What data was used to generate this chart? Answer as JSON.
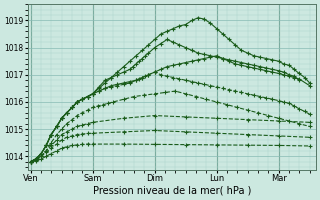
{
  "bg_color": "#cce8e0",
  "plot_bg": "#cce8e0",
  "grid_color_major": "#88bbb4",
  "grid_color_minor": "#aad4cc",
  "line_color": "#1a5c1a",
  "xlabel": "Pression niveau de la mer( hPa )",
  "ylim": [
    1013.5,
    1019.6
  ],
  "yticks": [
    1014,
    1015,
    1016,
    1017,
    1018,
    1019
  ],
  "day_labels": [
    "Ven",
    "Sam",
    "Dim",
    "Lun",
    "Mar"
  ],
  "day_x": [
    0,
    1,
    2,
    3,
    4
  ],
  "total_hours": 120,
  "vline_color": "#336644",
  "series": [
    {
      "x": [
        0.0,
        0.08,
        0.17,
        0.25,
        0.33,
        0.42,
        0.5,
        0.58,
        0.67,
        0.75,
        0.83,
        0.92,
        1.0,
        1.1,
        1.2,
        1.3,
        1.4,
        1.5,
        1.6,
        1.7,
        1.8,
        1.9,
        2.0,
        2.1,
        2.2,
        2.3,
        2.4,
        2.5,
        2.6,
        2.7,
        2.8,
        2.9,
        3.0,
        3.1,
        3.2,
        3.3,
        3.4,
        3.5,
        3.6,
        3.7,
        3.8,
        3.9,
        4.0,
        4.08,
        4.17,
        4.25,
        4.33,
        4.42,
        4.5
      ],
      "y": [
        1013.8,
        1013.9,
        1014.1,
        1014.4,
        1014.8,
        1015.1,
        1015.4,
        1015.6,
        1015.8,
        1016.0,
        1016.1,
        1016.2,
        1016.3,
        1016.5,
        1016.7,
        1016.9,
        1017.1,
        1017.3,
        1017.5,
        1017.7,
        1017.9,
        1018.1,
        1018.3,
        1018.5,
        1018.6,
        1018.7,
        1018.8,
        1018.85,
        1019.0,
        1019.1,
        1019.05,
        1018.9,
        1018.7,
        1018.5,
        1018.3,
        1018.1,
        1017.9,
        1017.8,
        1017.7,
        1017.65,
        1017.6,
        1017.55,
        1017.5,
        1017.4,
        1017.35,
        1017.2,
        1017.05,
        1016.9,
        1016.7
      ],
      "style": "solid"
    },
    {
      "x": [
        0.0,
        0.08,
        0.17,
        0.25,
        0.33,
        0.42,
        0.5,
        0.58,
        0.67,
        0.75,
        0.83,
        0.92,
        1.0,
        1.1,
        1.2,
        1.3,
        1.4,
        1.5,
        1.6,
        1.65,
        1.7,
        1.75,
        1.8,
        1.85,
        1.9,
        2.0,
        2.1,
        2.2,
        2.3,
        2.4,
        2.5,
        2.6,
        2.7,
        2.8,
        2.9,
        3.0,
        3.1,
        3.2,
        3.3,
        3.4,
        3.5,
        3.6,
        3.7,
        3.8,
        3.9,
        4.0,
        4.08,
        4.17,
        4.25,
        4.33
      ],
      "y": [
        1013.8,
        1013.9,
        1014.1,
        1014.4,
        1014.8,
        1015.1,
        1015.4,
        1015.6,
        1015.8,
        1016.0,
        1016.1,
        1016.2,
        1016.3,
        1016.55,
        1016.8,
        1016.9,
        1017.0,
        1017.1,
        1017.2,
        1017.3,
        1017.4,
        1017.5,
        1017.6,
        1017.7,
        1017.8,
        1018.0,
        1018.15,
        1018.3,
        1018.2,
        1018.1,
        1018.0,
        1017.9,
        1017.8,
        1017.75,
        1017.7,
        1017.65,
        1017.6,
        1017.55,
        1017.5,
        1017.45,
        1017.4,
        1017.35,
        1017.3,
        1017.25,
        1017.2,
        1017.15,
        1017.1,
        1017.0,
        1016.95,
        1016.8
      ],
      "style": "solid"
    },
    {
      "x": [
        0.0,
        0.08,
        0.17,
        0.25,
        0.33,
        0.42,
        0.5,
        0.58,
        0.67,
        0.75,
        0.83,
        0.92,
        1.0,
        1.1,
        1.2,
        1.3,
        1.4,
        1.5,
        1.6,
        1.7,
        1.75,
        1.8,
        1.85,
        1.9,
        2.0,
        2.1,
        2.2,
        2.3,
        2.4,
        2.5,
        2.6,
        2.7,
        2.8,
        2.9,
        3.0,
        3.1,
        3.2,
        3.3,
        3.4,
        3.5,
        3.6,
        3.7,
        3.8,
        3.9,
        4.0,
        4.08,
        4.17,
        4.25,
        4.33,
        4.5
      ],
      "y": [
        1013.8,
        1013.9,
        1014.1,
        1014.4,
        1014.8,
        1015.1,
        1015.4,
        1015.6,
        1015.8,
        1016.0,
        1016.1,
        1016.2,
        1016.3,
        1016.4,
        1016.5,
        1016.6,
        1016.65,
        1016.7,
        1016.75,
        1016.8,
        1016.85,
        1016.9,
        1016.95,
        1017.0,
        1017.1,
        1017.2,
        1017.3,
        1017.35,
        1017.4,
        1017.45,
        1017.5,
        1017.55,
        1017.6,
        1017.65,
        1017.7,
        1017.6,
        1017.5,
        1017.4,
        1017.35,
        1017.3,
        1017.25,
        1017.2,
        1017.15,
        1017.1,
        1017.05,
        1017.0,
        1016.95,
        1016.9,
        1016.85,
        1016.6
      ],
      "style": "solid"
    },
    {
      "x": [
        0.0,
        0.08,
        0.17,
        0.25,
        0.33,
        0.42,
        0.5,
        0.58,
        0.67,
        0.75,
        0.83,
        0.92,
        1.0,
        1.1,
        1.2,
        1.3,
        1.4,
        1.5,
        1.6,
        1.7,
        1.8,
        1.9,
        2.0,
        2.1,
        2.2,
        2.3,
        2.4,
        2.5,
        2.6,
        2.7,
        2.8,
        2.9,
        3.0,
        3.1,
        3.2,
        3.3,
        3.4,
        3.5,
        3.6,
        3.7,
        3.8,
        3.9,
        4.0,
        4.08,
        4.17,
        4.25,
        4.33,
        4.42,
        4.5
      ],
      "y": [
        1013.8,
        1013.9,
        1014.1,
        1014.4,
        1014.8,
        1015.1,
        1015.4,
        1015.6,
        1015.8,
        1016.0,
        1016.1,
        1016.2,
        1016.3,
        1016.4,
        1016.5,
        1016.55,
        1016.6,
        1016.65,
        1016.7,
        1016.8,
        1016.9,
        1017.0,
        1017.1,
        1017.0,
        1016.95,
        1016.9,
        1016.85,
        1016.8,
        1016.75,
        1016.7,
        1016.65,
        1016.6,
        1016.55,
        1016.5,
        1016.45,
        1016.4,
        1016.35,
        1016.3,
        1016.25,
        1016.2,
        1016.15,
        1016.1,
        1016.05,
        1016.0,
        1015.95,
        1015.85,
        1015.75,
        1015.65,
        1015.55
      ],
      "style": "dashed"
    },
    {
      "x": [
        0.0,
        0.08,
        0.17,
        0.25,
        0.33,
        0.42,
        0.5,
        0.58,
        0.67,
        0.75,
        0.83,
        0.92,
        1.0,
        1.08,
        1.17,
        1.25,
        1.33,
        1.5,
        1.67,
        1.83,
        2.0,
        2.17,
        2.33,
        2.5,
        2.67,
        2.83,
        3.0,
        3.17,
        3.33,
        3.5,
        3.67,
        3.83,
        4.0,
        4.17,
        4.33,
        4.5
      ],
      "y": [
        1013.8,
        1013.9,
        1014.0,
        1014.2,
        1014.5,
        1014.8,
        1015.0,
        1015.2,
        1015.35,
        1015.5,
        1015.6,
        1015.7,
        1015.8,
        1015.85,
        1015.9,
        1015.95,
        1016.0,
        1016.1,
        1016.2,
        1016.25,
        1016.3,
        1016.35,
        1016.4,
        1016.3,
        1016.2,
        1016.1,
        1016.0,
        1015.9,
        1015.8,
        1015.7,
        1015.6,
        1015.5,
        1015.4,
        1015.3,
        1015.2,
        1015.1
      ],
      "style": "dashed"
    },
    {
      "x": [
        0.0,
        0.08,
        0.17,
        0.25,
        0.33,
        0.42,
        0.5,
        0.58,
        0.67,
        0.75,
        0.83,
        0.92,
        1.0,
        1.5,
        2.0,
        2.5,
        3.0,
        3.5,
        4.0,
        4.5
      ],
      "y": [
        1013.8,
        1013.85,
        1014.0,
        1014.2,
        1014.4,
        1014.6,
        1014.8,
        1014.9,
        1015.0,
        1015.1,
        1015.15,
        1015.2,
        1015.25,
        1015.4,
        1015.5,
        1015.45,
        1015.4,
        1015.35,
        1015.3,
        1015.25
      ],
      "style": "dashed"
    },
    {
      "x": [
        0.0,
        0.08,
        0.17,
        0.25,
        0.33,
        0.42,
        0.5,
        0.58,
        0.67,
        0.75,
        0.83,
        0.92,
        1.0,
        1.5,
        2.0,
        2.5,
        3.0,
        3.5,
        4.0,
        4.5
      ],
      "y": [
        1013.8,
        1013.85,
        1014.0,
        1014.15,
        1014.3,
        1014.45,
        1014.6,
        1014.7,
        1014.75,
        1014.8,
        1014.82,
        1014.84,
        1014.85,
        1014.9,
        1014.95,
        1014.9,
        1014.85,
        1014.8,
        1014.75,
        1014.7
      ],
      "style": "dashed"
    },
    {
      "x": [
        0.0,
        0.08,
        0.17,
        0.25,
        0.33,
        0.42,
        0.5,
        0.58,
        0.67,
        0.75,
        0.83,
        0.92,
        1.0,
        1.5,
        2.0,
        2.5,
        3.0,
        3.5,
        4.0,
        4.5
      ],
      "y": [
        1013.8,
        1013.83,
        1013.9,
        1014.0,
        1014.1,
        1014.2,
        1014.3,
        1014.35,
        1014.4,
        1014.42,
        1014.44,
        1014.45,
        1014.45,
        1014.45,
        1014.44,
        1014.43,
        1014.42,
        1014.41,
        1014.4,
        1014.38
      ],
      "style": "dashed"
    }
  ]
}
